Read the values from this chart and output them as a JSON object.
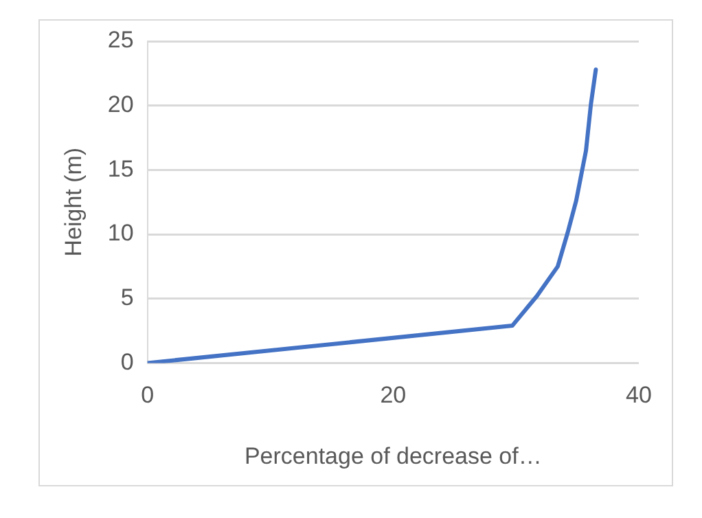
{
  "chart_data": {
    "type": "line",
    "xlabel": "Percentage of decrease of…",
    "ylabel": "Height (m)",
    "series": [
      {
        "color": "#4472c4",
        "x": [
          0,
          29.7,
          31.7,
          33.4,
          34.2,
          34.9,
          35.7,
          36.1,
          36.5
        ],
        "values": [
          0,
          2.9,
          5.2,
          7.5,
          10.1,
          12.6,
          16.5,
          20.1,
          22.8
        ]
      }
    ],
    "xlim": [
      0,
      40
    ],
    "xticks": [
      0,
      20,
      40
    ],
    "ylim": [
      0,
      25
    ],
    "yticks": [
      0,
      5,
      10,
      15,
      20,
      25
    ],
    "grid": "y",
    "legend": false,
    "marker": "none",
    "line_style": "solid"
  }
}
